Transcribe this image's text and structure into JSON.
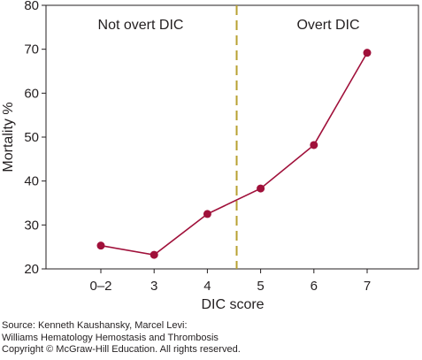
{
  "chart_data": {
    "type": "line",
    "categories": [
      "0–2",
      "3",
      "4",
      "5",
      "6",
      "7"
    ],
    "series": [
      {
        "values": [
          25.3,
          23.2,
          32.5,
          38.3,
          48.2,
          69.2
        ]
      }
    ],
    "title": "",
    "xlabel": "DIC score",
    "ylabel": "Mortality %",
    "ylim": [
      20,
      80
    ],
    "yticks": [
      20,
      30,
      40,
      50,
      60,
      70,
      80
    ],
    "grid": false,
    "threshold_line": {
      "position": 4.55,
      "style": "dashed"
    },
    "annotations": [
      "Not overt DIC",
      "Overt DIC"
    ],
    "colors": {
      "series": "#a0103a",
      "threshold": "#b8a131",
      "axis": "#231f20"
    }
  },
  "source": {
    "line1": "Source: Kenneth Kaushansky, Marcel Levi:",
    "line2": "Williams Hematology Hemostasis and Thrombosis",
    "line3": "Copyright © McGraw-Hill Education. All rights reserved."
  }
}
